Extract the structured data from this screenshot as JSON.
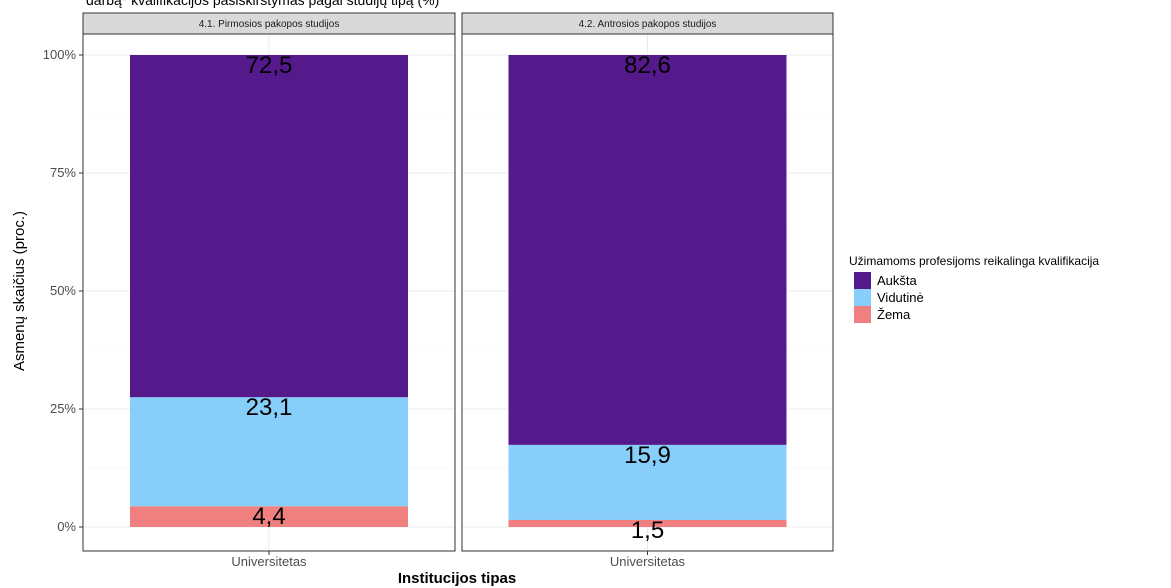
{
  "colors": {
    "Aukšta": "#541a8b",
    "Vidutinė": "#87cefa",
    "Žema": "#f08080"
  },
  "chart_data": {
    "type": "bar",
    "stacked": true,
    "title": "darbą* kvalifikacijos pasiskirstymas pagal studijų tipą (%)",
    "xlabel": "Institucijos tipas",
    "ylabel": "Asmenų skaičius (proc.)",
    "ylim": [
      0,
      100
    ],
    "yticks": [
      "0%",
      "25%",
      "50%",
      "75%",
      "100%"
    ],
    "ytick_values": [
      0,
      25,
      50,
      75,
      100
    ],
    "grid": true,
    "legend": {
      "title": "Užimamoms profesijoms reikalinga kvalifikacija",
      "placement": "right",
      "entries": [
        "Aukšta",
        "Vidutinė",
        "Žema"
      ]
    },
    "facets": [
      {
        "title": "4.1. Pirmosios pakopos studijos",
        "categories": [
          "Universitetas"
        ],
        "series": [
          {
            "name": "Žema",
            "values": [
              4.4
            ],
            "label": "4,4"
          },
          {
            "name": "Vidutinė",
            "values": [
              23.1
            ],
            "label": "23,1"
          },
          {
            "name": "Aukšta",
            "values": [
              72.5
            ],
            "label": "72,5"
          }
        ]
      },
      {
        "title": "4.2. Antrosios pakopos studijos",
        "categories": [
          "Universitetas"
        ],
        "series": [
          {
            "name": "Žema",
            "values": [
              1.5
            ],
            "label": "1,5"
          },
          {
            "name": "Vidutinė",
            "values": [
              15.9
            ],
            "label": "15,9"
          },
          {
            "name": "Aukšta",
            "values": [
              82.6
            ],
            "label": "82,6"
          }
        ]
      }
    ]
  }
}
